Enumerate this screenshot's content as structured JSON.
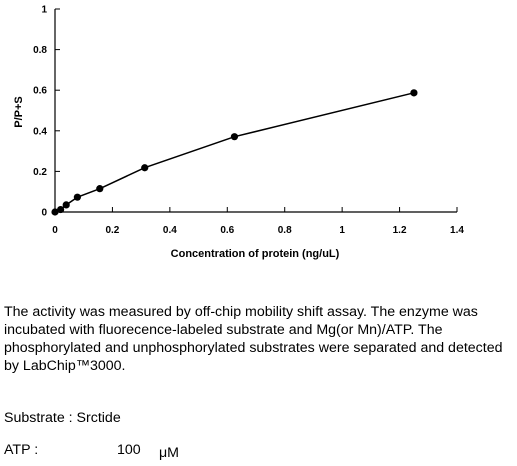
{
  "chart_data": {
    "type": "line",
    "title": "",
    "xlabel": "Concentration of protein (ng/uL)",
    "ylabel": "P/P+S",
    "xlim": [
      0,
      1.4
    ],
    "ylim": [
      0,
      1
    ],
    "xticks": [
      "0",
      "0.2",
      "0.4",
      "0.6",
      "0.8",
      "1",
      "1.2",
      "1.4"
    ],
    "yticks": [
      "0",
      "0.2",
      "0.4",
      "0.6",
      "0.8",
      "1"
    ],
    "grid": false,
    "legend": "none",
    "series": [
      {
        "x": [
          0,
          0.0195,
          0.039,
          0.078,
          0.156,
          0.3125,
          0.625,
          1.25
        ],
        "y": [
          0.0,
          0.012,
          0.035,
          0.073,
          0.115,
          0.218,
          0.371,
          0.587
        ],
        "color": "#000000"
      }
    ]
  },
  "caption": {
    "text": "The activity was measured by off-chip mobility shift assay. The enzyme was incubated with fluorecence-labeled  substrate and Mg(or Mn)/ATP. The phosphorylated and unphosphorylated substrates were separated and detected by LabChip™3000."
  },
  "substrate": {
    "text": "Substrate : Srctide"
  },
  "atp": {
    "label": "ATP :",
    "value": "100",
    "unit": "μM"
  }
}
